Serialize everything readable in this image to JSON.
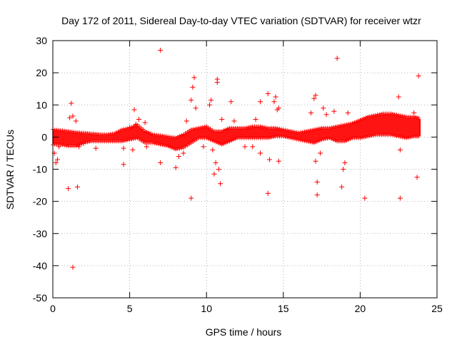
{
  "chart_data": {
    "type": "scatter",
    "title": "Day 172 of 2011, Sidereal Day-to-day VTEC variation (SDTVAR) for receiver wtzr",
    "xlabel": "GPS time / hours",
    "ylabel": "SDTVAR / TECUs",
    "xlim": [
      0,
      25
    ],
    "ylim": [
      -50,
      30
    ],
    "xticks": [
      0,
      5,
      10,
      15,
      20,
      25
    ],
    "yticks": [
      -50,
      -40,
      -30,
      -20,
      -10,
      0,
      10,
      20,
      30
    ],
    "grid": true,
    "marker": "+",
    "color": "#ff0000",
    "band": {
      "description": "dense continuous band of samples",
      "x": [
        0.0,
        0.5,
        1.0,
        1.5,
        2.0,
        2.5,
        3.0,
        3.5,
        4.0,
        4.5,
        5.0,
        5.5,
        6.0,
        6.5,
        7.0,
        7.5,
        8.0,
        8.5,
        9.0,
        9.5,
        10.0,
        10.5,
        11.0,
        11.5,
        12.0,
        12.5,
        13.0,
        13.5,
        14.0,
        14.5,
        15.0,
        15.5,
        16.0,
        16.5,
        17.0,
        17.5,
        18.0,
        18.5,
        19.0,
        19.5,
        20.0,
        20.5,
        21.0,
        21.5,
        22.0,
        22.5,
        23.0,
        23.5,
        23.9
      ],
      "upper": [
        2.0,
        1.8,
        1.5,
        1.2,
        1.0,
        0.8,
        0.6,
        0.5,
        0.8,
        2.0,
        2.5,
        3.5,
        1.5,
        0.5,
        0.2,
        -0.2,
        -0.5,
        0.5,
        2.0,
        2.5,
        3.0,
        1.5,
        1.5,
        2.5,
        2.5,
        2.5,
        3.0,
        3.0,
        2.5,
        2.5,
        2.0,
        1.5,
        1.0,
        1.5,
        2.0,
        2.5,
        2.5,
        3.0,
        3.5,
        4.0,
        5.0,
        6.0,
        6.5,
        7.0,
        7.0,
        6.5,
        6.0,
        6.0,
        5.5
      ],
      "lower": [
        -2.0,
        -2.0,
        -2.5,
        -2.5,
        -1.5,
        -1.0,
        -1.0,
        -1.0,
        -1.0,
        -1.0,
        -0.5,
        0.0,
        -1.5,
        -1.5,
        -2.0,
        -2.5,
        -3.5,
        -3.0,
        -1.5,
        0.0,
        0.0,
        -1.0,
        -2.0,
        -1.0,
        0.0,
        0.0,
        0.0,
        0.0,
        0.0,
        0.5,
        0.5,
        0.0,
        -0.5,
        -1.0,
        -1.5,
        -0.5,
        0.0,
        -1.0,
        -1.0,
        0.0,
        0.0,
        0.5,
        1.0,
        1.0,
        1.0,
        0.5,
        0.0,
        0.5,
        0.5
      ]
    },
    "outliers": [
      [
        0.1,
        -5
      ],
      [
        0.2,
        -8
      ],
      [
        0.3,
        -7
      ],
      [
        0.4,
        -3
      ],
      [
        1.0,
        -16
      ],
      [
        1.1,
        6
      ],
      [
        1.2,
        10.5
      ],
      [
        1.3,
        6.5
      ],
      [
        1.3,
        -40.5
      ],
      [
        1.5,
        5
      ],
      [
        1.6,
        -15.5
      ],
      [
        1.7,
        -3
      ],
      [
        2.0,
        -2
      ],
      [
        2.8,
        -3.5
      ],
      [
        4.6,
        -3.5
      ],
      [
        4.6,
        -8.5
      ],
      [
        5.0,
        3
      ],
      [
        5.2,
        -4
      ],
      [
        5.3,
        8.5
      ],
      [
        5.4,
        4
      ],
      [
        5.6,
        5.5
      ],
      [
        6.0,
        4.5
      ],
      [
        6.1,
        -3
      ],
      [
        7.0,
        27
      ],
      [
        7.0,
        -8
      ],
      [
        8.0,
        -9.5
      ],
      [
        8.2,
        -6
      ],
      [
        8.5,
        -5
      ],
      [
        8.7,
        5
      ],
      [
        9.0,
        11.5
      ],
      [
        9.0,
        -19
      ],
      [
        9.1,
        15.5
      ],
      [
        9.2,
        18.5
      ],
      [
        9.3,
        9
      ],
      [
        9.8,
        -3
      ],
      [
        10.2,
        10
      ],
      [
        10.3,
        11.5
      ],
      [
        10.4,
        -4
      ],
      [
        10.5,
        -11.5
      ],
      [
        10.6,
        -8
      ],
      [
        10.7,
        17
      ],
      [
        10.7,
        18
      ],
      [
        10.8,
        -10
      ],
      [
        10.9,
        -14.5
      ],
      [
        11.0,
        5.5
      ],
      [
        11.6,
        11
      ],
      [
        11.8,
        5
      ],
      [
        12.5,
        -3
      ],
      [
        13.0,
        -3
      ],
      [
        13.2,
        5.5
      ],
      [
        13.5,
        11
      ],
      [
        13.5,
        -5
      ],
      [
        14.0,
        13.5
      ],
      [
        14.0,
        -17.5
      ],
      [
        14.1,
        -7
      ],
      [
        14.4,
        11
      ],
      [
        14.5,
        12.5
      ],
      [
        14.6,
        8.5
      ],
      [
        14.7,
        9
      ],
      [
        14.7,
        -7.5
      ],
      [
        16.8,
        7.5
      ],
      [
        17.0,
        12
      ],
      [
        17.1,
        13
      ],
      [
        17.1,
        -7.5
      ],
      [
        17.2,
        -14
      ],
      [
        17.2,
        -18
      ],
      [
        17.4,
        -5
      ],
      [
        17.6,
        9
      ],
      [
        17.8,
        7
      ],
      [
        18.3,
        8
      ],
      [
        18.5,
        24.5
      ],
      [
        18.8,
        -15.5
      ],
      [
        18.9,
        -10
      ],
      [
        19.0,
        -8
      ],
      [
        19.2,
        7.5
      ],
      [
        20.3,
        -19
      ],
      [
        22.5,
        12.5
      ],
      [
        22.6,
        -19
      ],
      [
        22.6,
        -4
      ],
      [
        23.5,
        7.5
      ],
      [
        23.7,
        -12.5
      ],
      [
        23.8,
        19
      ]
    ]
  }
}
